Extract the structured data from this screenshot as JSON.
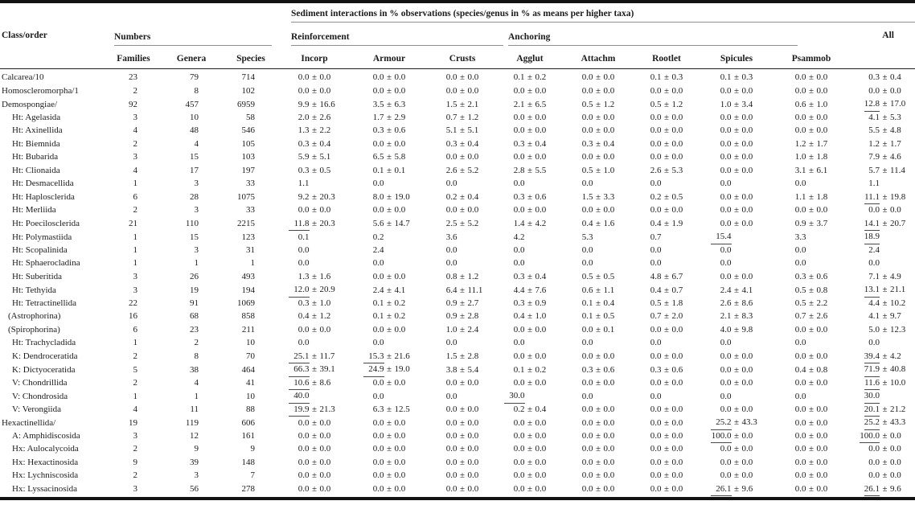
{
  "table": {
    "spanner_title": "Sediment interactions in % observations (species/genus in % as means per higher taxa)",
    "class_order_label": "Class/order",
    "groups": {
      "numbers": "Numbers",
      "reinforcement": "Reinforcement",
      "anchoring": "Anchoring",
      "all": "All"
    },
    "columns": [
      "Families",
      "Genera",
      "Species",
      "Incorp",
      "Armour",
      "Crusts",
      "Agglut",
      "Attachm",
      "Rootlet",
      "Spicules",
      "Psammob"
    ],
    "pm_symbol": "±",
    "colors": {
      "rule_dark": "#121212",
      "rule_gray": "#8f8f8f",
      "text": "#1b1b1b"
    },
    "rows": [
      {
        "label": "Calcarea/10",
        "indent": 0,
        "nums": [
          "23",
          "79",
          "714"
        ],
        "cells": [
          "0.0|0.0",
          "0.0|0.0",
          "0.0|0.0",
          "0.1|0.2",
          "0.0|0.0",
          "0.1|0.3",
          "0.1|0.3",
          "0.0|0.0",
          "0.3|0.4"
        ]
      },
      {
        "label": "Homoscleromorpha/1",
        "indent": 0,
        "nums": [
          "2",
          "8",
          "102"
        ],
        "cells": [
          "0.0|0.0",
          "0.0|0.0",
          "0.0|0.0",
          "0.0|0.0",
          "0.0|0.0",
          "0.0|0.0",
          "0.0|0.0",
          "0.0|0.0",
          "0.0|0.0"
        ]
      },
      {
        "label": "Demospongiae/",
        "indent": 0,
        "nums": [
          "92",
          "457",
          "6959"
        ],
        "cells": [
          "9.9|16.6",
          "3.5|6.3",
          "1.5|2.1",
          "2.1|6.5",
          "0.5|1.2",
          "0.5|1.2",
          "1.0|3.4",
          "0.6|1.0",
          "12.8*|17.0"
        ]
      },
      {
        "label": "Ht: Agelasida",
        "indent": 1,
        "nums": [
          "3",
          "10",
          "58"
        ],
        "cells": [
          "2.0|2.6",
          "1.7|2.9",
          "0.7|1.2",
          "0.0|0.0",
          "0.0|0.0",
          "0.0|0.0",
          "0.0|0.0",
          "0.0|0.0",
          "4.1|5.3"
        ]
      },
      {
        "label": "Ht: Axinellida",
        "indent": 1,
        "nums": [
          "4",
          "48",
          "546"
        ],
        "cells": [
          "1.3|2.2",
          "0.3|0.6",
          "5.1|5.1",
          "0.0|0.0",
          "0.0|0.0",
          "0.0|0.0",
          "0.0|0.0",
          "0.0|0.0",
          "5.5|4.8"
        ]
      },
      {
        "label": "Ht: Biemnida",
        "indent": 1,
        "nums": [
          "2",
          "4",
          "105"
        ],
        "cells": [
          "0.3|0.4",
          "0.0|0.0",
          "0.3|0.4",
          "0.3|0.4",
          "0.3|0.4",
          "0.0|0.0",
          "0.0|0.0",
          "1.2|1.7",
          "1.2|1.7"
        ]
      },
      {
        "label": "Ht: Bubarida",
        "indent": 1,
        "nums": [
          "3",
          "15",
          "103"
        ],
        "cells": [
          "5.9|5.1",
          "6.5|5.8",
          "0.0|0.0",
          "0.0|0.0",
          "0.0|0.0",
          "0.0|0.0",
          "0.0|0.0",
          "1.0|1.8",
          "7.9|4.6"
        ]
      },
      {
        "label": "Ht: Clionaida",
        "indent": 1,
        "nums": [
          "4",
          "17",
          "197"
        ],
        "cells": [
          "0.3|0.5",
          "0.1|0.1",
          "2.6|5.2",
          "2.8|5.5",
          "0.5|1.0",
          "2.6|5.3",
          "0.0|0.0",
          "3.1|6.1",
          "5.7|11.4"
        ]
      },
      {
        "label": "Ht: Desmacellida",
        "indent": 1,
        "nums": [
          "1",
          "3",
          "33"
        ],
        "cells": [
          "1.1",
          "0.0",
          "0.0",
          "0.0",
          "0.0",
          "0.0",
          "0.0",
          "0.0",
          "1.1"
        ]
      },
      {
        "label": "Ht: Haplosclerida",
        "indent": 1,
        "nums": [
          "6",
          "28",
          "1075"
        ],
        "cells": [
          "9.2|20.3",
          "8.0|19.0",
          "0.2|0.4",
          "0.3|0.6",
          "1.5|3.3",
          "0.2|0.5",
          "0.0|0.0",
          "1.1|1.8",
          "11.1*|19.8"
        ]
      },
      {
        "label": "Ht: Merliida",
        "indent": 1,
        "nums": [
          "2",
          "3",
          "33"
        ],
        "cells": [
          "0.0|0.0",
          "0.0|0.0",
          "0.0|0.0",
          "0.0|0.0",
          "0.0|0.0",
          "0.0|0.0",
          "0.0|0.0",
          "0.0|0.0",
          "0.0|0.0"
        ]
      },
      {
        "label": "Ht: Poecilosclerida",
        "indent": 1,
        "nums": [
          "21",
          "110",
          "2215"
        ],
        "cells": [
          "11.8*|20.3",
          "5.6|14.7",
          "2.5|5.2",
          "1.4|4.2",
          "0.4|1.6",
          "0.4|1.9",
          "0.0|0.0",
          "0.9|3.7",
          "14.1*|20.7"
        ]
      },
      {
        "label": "Ht: Polymastiida",
        "indent": 1,
        "nums": [
          "1",
          "15",
          "123"
        ],
        "cells": [
          "0.1",
          "0.2",
          "3.6",
          "4.2",
          "5.3",
          "0.7",
          "15.4*",
          "3.3",
          "18.9*"
        ]
      },
      {
        "label": "Ht: Scopalinida",
        "indent": 1,
        "nums": [
          "1",
          "3",
          "31"
        ],
        "cells": [
          "0.0",
          "2.4",
          "0.0",
          "0.0",
          "0.0",
          "0.0",
          "0.0",
          "0.0",
          "2.4"
        ]
      },
      {
        "label": "Ht: Sphaerocladina",
        "indent": 1,
        "nums": [
          "1",
          "1",
          "1"
        ],
        "cells": [
          "0.0",
          "0.0",
          "0.0",
          "0.0",
          "0.0",
          "0.0",
          "0.0",
          "0.0",
          "0.0"
        ]
      },
      {
        "label": "Ht: Suberitida",
        "indent": 1,
        "nums": [
          "3",
          "26",
          "493"
        ],
        "cells": [
          "1.3|1.6",
          "0.0|0.0",
          "0.8|1.2",
          "0.3|0.4",
          "0.5|0.5",
          "4.8|6.7",
          "0.0|0.0",
          "0.3|0.6",
          "7.1|4.9"
        ]
      },
      {
        "label": "Ht: Tethyida",
        "indent": 1,
        "nums": [
          "3",
          "19",
          "194"
        ],
        "cells": [
          "12.0*|20.9",
          "2.4|4.1",
          "6.4|11.1",
          "4.4|7.6",
          "0.6|1.1",
          "0.4|0.7",
          "2.4|4.1",
          "0.5|0.8",
          "13.1*|21.1"
        ]
      },
      {
        "label": "Ht: Tetractinellida",
        "indent": 1,
        "nums": [
          "22",
          "91",
          "1069"
        ],
        "cells": [
          "0.3|1.0",
          "0.1|0.2",
          "0.9|2.7",
          "0.3|0.9",
          "0.1|0.4",
          "0.5|1.8",
          "2.6|8.6",
          "0.5|2.2",
          "4.4|10.2"
        ]
      },
      {
        "label": "(Astrophorina)",
        "indent": 2,
        "nums": [
          "16",
          "68",
          "858"
        ],
        "cells": [
          "0.4|1.2",
          "0.1|0.2",
          "0.9|2.8",
          "0.4|1.0",
          "0.1|0.5",
          "0.7|2.0",
          "2.1|8.3",
          "0.7|2.6",
          "4.1|9.7"
        ]
      },
      {
        "label": "(Spirophorina)",
        "indent": 2,
        "nums": [
          "6",
          "23",
          "211"
        ],
        "cells": [
          "0.0|0.0",
          "0.0|0.0",
          "1.0|2.4",
          "0.0|0.0",
          "0.0|0.1",
          "0.0|0.0",
          "4.0|9.8",
          "0.0|0.0",
          "5.0|12.3"
        ]
      },
      {
        "label": "Ht: Trachycladida",
        "indent": 1,
        "nums": [
          "1",
          "2",
          "10"
        ],
        "cells": [
          "0.0",
          "0.0",
          "0.0",
          "0.0",
          "0.0",
          "0.0",
          "0.0",
          "0.0",
          "0.0"
        ]
      },
      {
        "label": "K: Dendroceratida",
        "indent": 1,
        "nums": [
          "2",
          "8",
          "70"
        ],
        "cells": [
          "25.1*|11.7",
          "15.3*|21.6",
          "1.5|2.8",
          "0.0|0.0",
          "0.0|0.0",
          "0.0|0.0",
          "0.0|0.0",
          "0.0|0.0",
          "39.4*|4.2"
        ]
      },
      {
        "label": "K: Dictyoceratida",
        "indent": 1,
        "nums": [
          "5",
          "38",
          "464"
        ],
        "cells": [
          "66.3*|39.1",
          "24.9*|19.0",
          "3.8|5.4",
          "0.1|0.2",
          "0.3|0.6",
          "0.3|0.6",
          "0.0|0.0",
          "0.4|0.8",
          "71.9*|40.8"
        ]
      },
      {
        "label": "V: Chondrillida",
        "indent": 1,
        "nums": [
          "2",
          "4",
          "41"
        ],
        "cells": [
          "10.6*|8.6",
          "0.0|0.0",
          "0.0|0.0",
          "0.0|0.0",
          "0.0|0.0",
          "0.0|0.0",
          "0.0|0.0",
          "0.0|0.0",
          "11.6*|10.0"
        ]
      },
      {
        "label": "V: Chondrosida",
        "indent": 1,
        "nums": [
          "1",
          "1",
          "10"
        ],
        "cells": [
          "40.0*",
          "0.0",
          "0.0",
          "30.0*",
          "0.0",
          "0.0",
          "0.0",
          "0.0",
          "30.0*"
        ]
      },
      {
        "label": "V: Verongiida",
        "indent": 1,
        "nums": [
          "4",
          "11",
          "88"
        ],
        "cells": [
          "19.9*|21.3",
          "6.3|12.5",
          "0.0|0.0",
          "0.2|0.4",
          "0.0|0.0",
          "0.0|0.0",
          "0.0|0.0",
          "0.0|0.0",
          "20.1*|21.2"
        ]
      },
      {
        "label": "Hexactinellida/",
        "indent": 0,
        "nums": [
          "19",
          "119",
          "606"
        ],
        "cells": [
          "0.0|0.0",
          "0.0|0.0",
          "0.0|0.0",
          "0.0|0.0",
          "0.0|0.0",
          "0.0|0.0",
          "25.2*|43.3",
          "0.0|0.0",
          "25.2*|43.3"
        ]
      },
      {
        "label": "A: Amphidiscosida",
        "indent": 1,
        "nums": [
          "3",
          "12",
          "161"
        ],
        "cells": [
          "0.0|0.0",
          "0.0|0.0",
          "0.0|0.0",
          "0.0|0.0",
          "0.0|0.0",
          "0.0|0.0",
          "100.0*|0.0",
          "0.0|0.0",
          "100.0*|0.0"
        ]
      },
      {
        "label": "Hx: Aulocalycoida",
        "indent": 1,
        "nums": [
          "2",
          "9",
          "9"
        ],
        "cells": [
          "0.0|0.0",
          "0.0|0.0",
          "0.0|0.0",
          "0.0|0.0",
          "0.0|0.0",
          "0.0|0.0",
          "0.0|0.0",
          "0.0|0.0",
          "0.0|0.0"
        ]
      },
      {
        "label": "Hx: Hexactinosida",
        "indent": 1,
        "nums": [
          "9",
          "39",
          "148"
        ],
        "cells": [
          "0.0|0.0",
          "0.0|0.0",
          "0.0|0.0",
          "0.0|0.0",
          "0.0|0.0",
          "0.0|0.0",
          "0.0|0.0",
          "0.0|0.0",
          "0.0|0.0"
        ]
      },
      {
        "label": "Hx: Lychniscosida",
        "indent": 1,
        "nums": [
          "2",
          "3",
          "7"
        ],
        "cells": [
          "0.0|0.0",
          "0.0|0.0",
          "0.0|0.0",
          "0.0|0.0",
          "0.0|0.0",
          "0.0|0.0",
          "0.0|0.0",
          "0.0|0.0",
          "0.0|0.0"
        ]
      },
      {
        "label": "Hx: Lyssacinosida",
        "indent": 1,
        "nums": [
          "3",
          "56",
          "278"
        ],
        "cells": [
          "0.0|0.0",
          "0.0|0.0",
          "0.0|0.0",
          "0.0|0.0",
          "0.0|0.0",
          "0.0|0.0",
          "26.1*|9.6",
          "0.0|0.0",
          "26.1*|9.6"
        ]
      }
    ]
  }
}
